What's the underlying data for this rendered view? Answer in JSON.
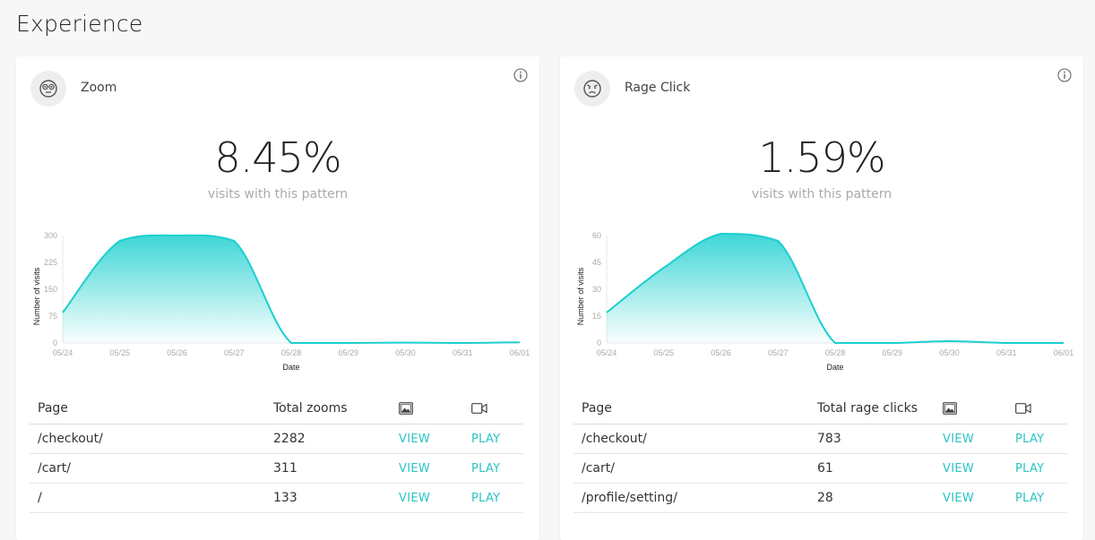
{
  "page_title": "Experience",
  "colors": {
    "accent": "#2bc3c4",
    "line": "#1ccfcf"
  },
  "cards": [
    {
      "title": "Zoom",
      "icon": "zoom-face-icon",
      "stat": "8.45%",
      "stat_caption": "visits with this pattern",
      "table": {
        "headers": {
          "page": "Page",
          "total": "Total zooms",
          "screenshot_icon": "image-icon",
          "video_icon": "video-camera-icon"
        },
        "rows": [
          {
            "page": "/checkout/",
            "total": "2282",
            "view": "VIEW",
            "play": "PLAY"
          },
          {
            "page": "/cart/",
            "total": "311",
            "view": "VIEW",
            "play": "PLAY"
          },
          {
            "page": "/",
            "total": "133",
            "view": "VIEW",
            "play": "PLAY"
          }
        ]
      }
    },
    {
      "title": "Rage Click",
      "icon": "angry-face-icon",
      "stat": "1.59%",
      "stat_caption": "visits with this pattern",
      "table": {
        "headers": {
          "page": "Page",
          "total": "Total rage clicks",
          "screenshot_icon": "image-icon",
          "video_icon": "video-camera-icon"
        },
        "rows": [
          {
            "page": "/checkout/",
            "total": "783",
            "view": "VIEW",
            "play": "PLAY"
          },
          {
            "page": "/cart/",
            "total": "61",
            "view": "VIEW",
            "play": "PLAY"
          },
          {
            "page": "/profile/setting/",
            "total": "28",
            "view": "VIEW",
            "play": "PLAY"
          }
        ]
      }
    }
  ],
  "chart_data": [
    {
      "type": "area",
      "xlabel": "Date",
      "ylabel": "Number of visits",
      "x_ticks": [
        "05/24",
        "05/25",
        "05/26",
        "05/27",
        "05/28",
        "05/29",
        "05/30",
        "05/31",
        "06/01"
      ],
      "y_ticks": [
        "0",
        "75",
        "150",
        "225",
        "300"
      ],
      "ylim": [
        0,
        300
      ],
      "grid": false,
      "series": [
        {
          "x": [
            "05/24",
            "05/25",
            "05/26",
            "05/27",
            "05/28",
            "05/29",
            "05/30",
            "05/31",
            "06/01"
          ],
          "values": [
            85,
            285,
            300,
            285,
            0,
            0,
            1,
            0,
            2
          ]
        }
      ]
    },
    {
      "type": "area",
      "xlabel": "Date",
      "ylabel": "Number of visits",
      "x_ticks": [
        "05/24",
        "05/25",
        "05/26",
        "05/27",
        "05/28",
        "05/29",
        "05/30",
        "05/31",
        "06/01"
      ],
      "y_ticks": [
        "0",
        "15",
        "30",
        "45",
        "60"
      ],
      "ylim": [
        0,
        60
      ],
      "grid": false,
      "series": [
        {
          "x": [
            "05/24",
            "05/25",
            "05/26",
            "05/27",
            "05/28",
            "05/29",
            "05/30",
            "05/31",
            "06/01"
          ],
          "values": [
            17,
            42,
            61,
            57,
            0,
            0,
            1,
            0,
            0
          ]
        }
      ]
    }
  ]
}
